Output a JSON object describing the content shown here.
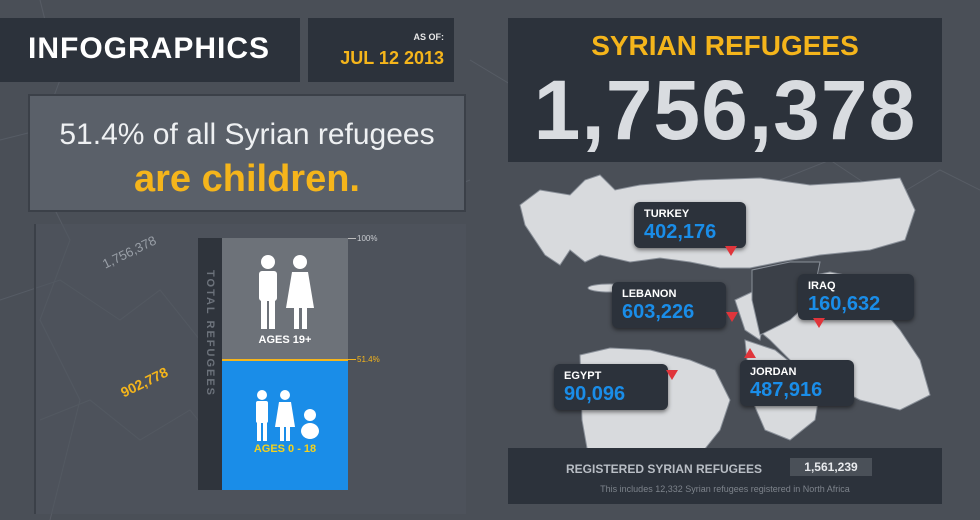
{
  "header": {
    "title": "INFOGRAPHICS",
    "as_of_label": "AS OF:",
    "date": "JUL 12 2013"
  },
  "headline": {
    "line1": "51.4% of all Syrian refugees",
    "line2": "are children."
  },
  "bar_chart": {
    "axis_label": "TOTAL REFUGEES",
    "total_value": "1,756,378",
    "children_value": "902,778",
    "top_pct": "100%",
    "split_pct": "51.4%",
    "adults_label": "AGES 19+",
    "children_label": "AGES 0 - 18",
    "children_share": 0.514
  },
  "summary": {
    "title": "SYRIAN REFUGEES",
    "total": "1,756,378"
  },
  "countries": [
    {
      "name": "TURKEY",
      "value": "402,176"
    },
    {
      "name": "LEBANON",
      "value": "603,226"
    },
    {
      "name": "IRAQ",
      "value": "160,632"
    },
    {
      "name": "EGYPT",
      "value": "90,096"
    },
    {
      "name": "JORDAN",
      "value": "487,916"
    }
  ],
  "registered": {
    "label": "REGISTERED SYRIAN REFUGEES",
    "value": "1,561,239",
    "note": "This includes 12,332 Syrian refugees registered in North Africa"
  },
  "colors": {
    "accent_yellow": "#f5b51b",
    "accent_blue": "#1a8de8",
    "pin_red": "#e0353b",
    "panel": "#2c323b"
  }
}
